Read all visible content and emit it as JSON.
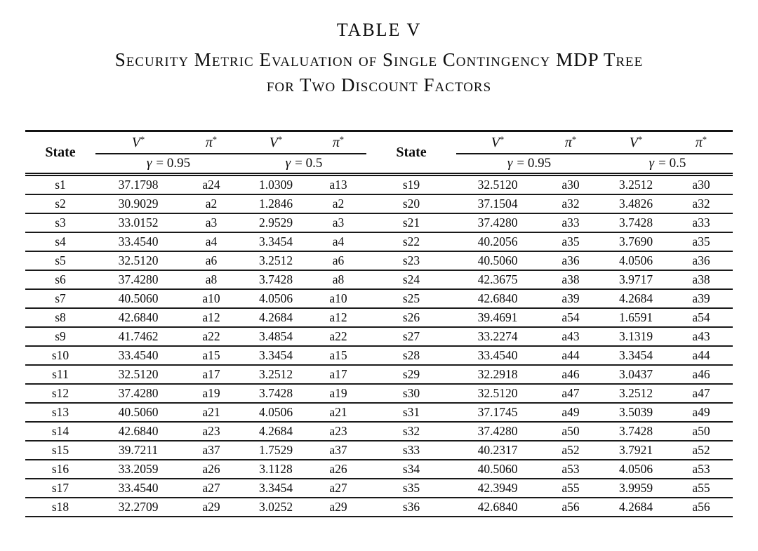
{
  "page": {
    "title": "TABLE V",
    "caption_line1": "Security Metric Evaluation of Single Contingency MDP Tree",
    "caption_line2": "for Two Discount Factors"
  },
  "header": {
    "state_label": "State",
    "value_symbol": "V",
    "policy_symbol": "π",
    "superscript": "*",
    "gamma_symbol": "γ",
    "gamma_high": "= 0.95",
    "gamma_low": "= 0.5"
  },
  "table": {
    "rows": [
      [
        "s1",
        "37.1798",
        "a24",
        "1.0309",
        "a13",
        "s19",
        "32.5120",
        "a30",
        "3.2512",
        "a30"
      ],
      [
        "s2",
        "30.9029",
        "a2",
        "1.2846",
        "a2",
        "s20",
        "37.1504",
        "a32",
        "3.4826",
        "a32"
      ],
      [
        "s3",
        "33.0152",
        "a3",
        "2.9529",
        "a3",
        "s21",
        "37.4280",
        "a33",
        "3.7428",
        "a33"
      ],
      [
        "s4",
        "33.4540",
        "a4",
        "3.3454",
        "a4",
        "s22",
        "40.2056",
        "a35",
        "3.7690",
        "a35"
      ],
      [
        "s5",
        "32.5120",
        "a6",
        "3.2512",
        "a6",
        "s23",
        "40.5060",
        "a36",
        "4.0506",
        "a36"
      ],
      [
        "s6",
        "37.4280",
        "a8",
        "3.7428",
        "a8",
        "s24",
        "42.3675",
        "a38",
        "3.9717",
        "a38"
      ],
      [
        "s7",
        "40.5060",
        "a10",
        "4.0506",
        "a10",
        "s25",
        "42.6840",
        "a39",
        "4.2684",
        "a39"
      ],
      [
        "s8",
        "42.6840",
        "a12",
        "4.2684",
        "a12",
        "s26",
        "39.4691",
        "a54",
        "1.6591",
        "a54"
      ],
      [
        "s9",
        "41.7462",
        "a22",
        "3.4854",
        "a22",
        "s27",
        "33.2274",
        "a43",
        "3.1319",
        "a43"
      ],
      [
        "s10",
        "33.4540",
        "a15",
        "3.3454",
        "a15",
        "s28",
        "33.4540",
        "a44",
        "3.3454",
        "a44"
      ],
      [
        "s11",
        "32.5120",
        "a17",
        "3.2512",
        "a17",
        "s29",
        "32.2918",
        "a46",
        "3.0437",
        "a46"
      ],
      [
        "s12",
        "37.4280",
        "a19",
        "3.7428",
        "a19",
        "s30",
        "32.5120",
        "a47",
        "3.2512",
        "a47"
      ],
      [
        "s13",
        "40.5060",
        "a21",
        "4.0506",
        "a21",
        "s31",
        "37.1745",
        "a49",
        "3.5039",
        "a49"
      ],
      [
        "s14",
        "42.6840",
        "a23",
        "4.2684",
        "a23",
        "s32",
        "37.4280",
        "a50",
        "3.7428",
        "a50"
      ],
      [
        "s15",
        "39.7211",
        "a37",
        "1.7529",
        "a37",
        "s33",
        "40.2317",
        "a52",
        "3.7921",
        "a52"
      ],
      [
        "s16",
        "33.2059",
        "a26",
        "3.1128",
        "a26",
        "s34",
        "40.5060",
        "a53",
        "4.0506",
        "a53"
      ],
      [
        "s17",
        "33.4540",
        "a27",
        "3.3454",
        "a27",
        "s35",
        "42.3949",
        "a55",
        "3.9959",
        "a55"
      ],
      [
        "s18",
        "32.2709",
        "a29",
        "3.0252",
        "a29",
        "s36",
        "42.6840",
        "a56",
        "4.2684",
        "a56"
      ]
    ]
  }
}
